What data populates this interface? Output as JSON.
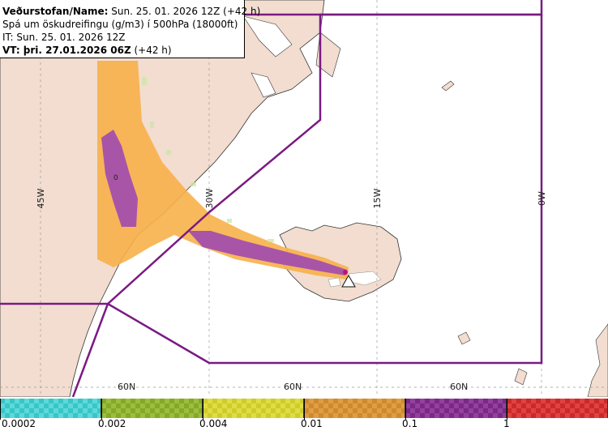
{
  "info": {
    "line1_bold": "Veðurstofan/Name:",
    "line1_rest": " Sun. 25. 01. 2026 12Z (+42 h)",
    "line2": "Spá um öskudreifingu (g/m3) í 500hPa (18000ft)",
    "line3": "IT: Sun. 25. 01. 2026 12Z",
    "line4_bold": "VT: þri. 27.01.2026 06Z",
    "line4_rest": " (+42 h)"
  },
  "map": {
    "longitude_labels": [
      "45W",
      "30W",
      "15W",
      "0W"
    ],
    "latitude_labels": [
      "60N",
      "60N",
      "60N"
    ],
    "contour_label": "0",
    "colors": {
      "land": "#f2ddd0",
      "sea": "#ffffff",
      "fir_boundary": "#7a1a82",
      "grid": "#9a9a9a",
      "ash_low": "#f7b04a",
      "ash_high": "#a855a8",
      "volcano_marker": "#c0107a"
    }
  },
  "legend": {
    "title": "",
    "swatches": [
      {
        "color": "#36c6c8",
        "alt": "#5fd8da"
      },
      {
        "color": "#84a82a",
        "alt": "#9cbe3c"
      },
      {
        "color": "#cfcc2a",
        "alt": "#e0dc46"
      },
      {
        "color": "#d08a2e",
        "alt": "#e09e44"
      },
      {
        "color": "#7a2a86",
        "alt": "#94409e"
      },
      {
        "color": "#cc2a2a",
        "alt": "#e04242"
      }
    ],
    "tick_labels": [
      "0.0002",
      "0.002",
      "0.004",
      "0.01",
      "0.1",
      "1"
    ]
  }
}
